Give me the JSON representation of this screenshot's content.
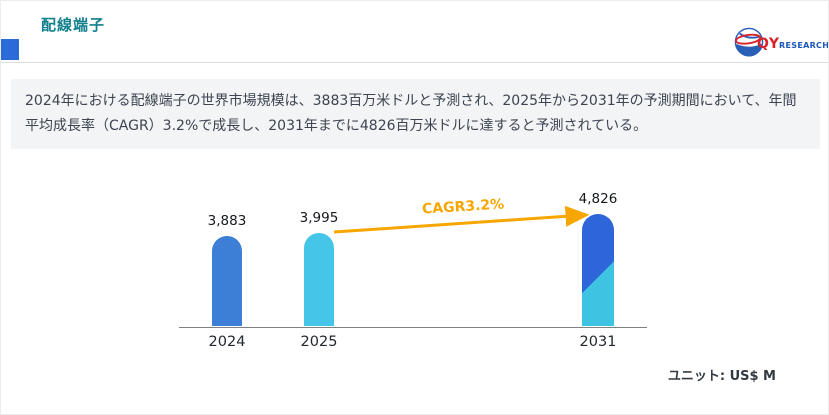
{
  "header": {
    "title": "配線端子",
    "logo": {
      "qy": "QY",
      "research": "RESEARCH"
    }
  },
  "summary": {
    "text": "2024年における配線端子の世界市場規模は、3883百万米ドルと予測され、2025年から2031年の予測期間において、年間平均成長率（CAGR）3.2%で成長し、2031年までに4826百万米ドルに達すると予測されている。"
  },
  "chart_data": {
    "type": "bar",
    "title": "",
    "categories": [
      "2024",
      "2025",
      "2031"
    ],
    "values": [
      3883,
      3995,
      4826
    ],
    "value_labels": [
      "3,883",
      "3,995",
      "4,826"
    ],
    "annotation": "CAGR3.2%",
    "unit_label": "ユニット: US$ M",
    "ylim": [
      0,
      4826
    ],
    "grid": false,
    "legend": "none",
    "bar_colors": [
      "#3d7fd6",
      "#45c6e8",
      "linear-gradient(135deg, #2e66d9 55%, #3fc3e2 55%)"
    ],
    "arrow_color": "#f7a600"
  },
  "colors": {
    "title": "#12808d",
    "accent_bar": "#2b6bd8",
    "summary_background": "#f2f4f6",
    "body_text": "#3d4450",
    "logo_red": "#d8232a",
    "logo_blue": "#1a57b8"
  }
}
